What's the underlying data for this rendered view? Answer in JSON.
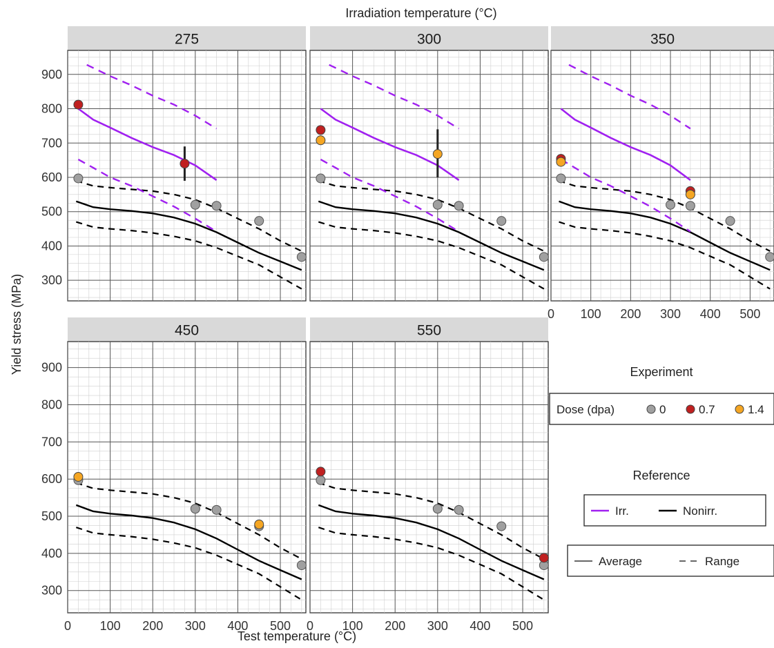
{
  "chart_data": {
    "type": "scatter",
    "top_title": "Irradiation temperature (°C)",
    "xlabel": "Test temperature (°C)",
    "ylabel": "Yield stress (MPa)",
    "xlim": [
      0,
      560
    ],
    "ylim": [
      240,
      970
    ],
    "x_ticks": [
      0,
      100,
      200,
      300,
      400,
      500
    ],
    "y_ticks": [
      300,
      400,
      500,
      600,
      700,
      800,
      900
    ],
    "grid": true,
    "reference": {
      "nonirr_average": [
        [
          20,
          530
        ],
        [
          60,
          513
        ],
        [
          100,
          507
        ],
        [
          150,
          502
        ],
        [
          200,
          495
        ],
        [
          250,
          483
        ],
        [
          300,
          465
        ],
        [
          350,
          440
        ],
        [
          400,
          410
        ],
        [
          450,
          380
        ],
        [
          500,
          355
        ],
        [
          550,
          330
        ]
      ],
      "nonirr_upper": [
        [
          20,
          590
        ],
        [
          60,
          575
        ],
        [
          100,
          570
        ],
        [
          150,
          565
        ],
        [
          200,
          560
        ],
        [
          250,
          550
        ],
        [
          300,
          535
        ],
        [
          350,
          510
        ],
        [
          400,
          480
        ],
        [
          450,
          450
        ],
        [
          500,
          415
        ],
        [
          550,
          385
        ]
      ],
      "nonirr_lower": [
        [
          20,
          470
        ],
        [
          60,
          455
        ],
        [
          100,
          450
        ],
        [
          150,
          445
        ],
        [
          200,
          438
        ],
        [
          250,
          428
        ],
        [
          300,
          415
        ],
        [
          350,
          395
        ],
        [
          400,
          370
        ],
        [
          450,
          345
        ],
        [
          500,
          310
        ],
        [
          550,
          275
        ]
      ],
      "irr_average": [
        [
          25,
          800
        ],
        [
          60,
          768
        ],
        [
          100,
          745
        ],
        [
          150,
          715
        ],
        [
          200,
          688
        ],
        [
          250,
          665
        ],
        [
          300,
          635
        ],
        [
          350,
          592
        ]
      ],
      "irr_upper": [
        [
          45,
          928
        ],
        [
          100,
          895
        ],
        [
          150,
          868
        ],
        [
          200,
          838
        ],
        [
          250,
          812
        ],
        [
          300,
          780
        ],
        [
          350,
          742
        ]
      ],
      "irr_lower": [
        [
          25,
          652
        ],
        [
          60,
          628
        ],
        [
          100,
          600
        ],
        [
          150,
          575
        ],
        [
          200,
          545
        ],
        [
          250,
          515
        ],
        [
          300,
          480
        ],
        [
          350,
          442
        ]
      ]
    },
    "nonirr_points": [
      [
        25,
        597
      ],
      [
        300,
        520
      ],
      [
        350,
        517
      ],
      [
        450,
        473
      ],
      [
        550,
        368
      ]
    ],
    "panels": [
      {
        "title": "275",
        "show_irr": true,
        "points": [
          {
            "x": 25,
            "y": 812,
            "dose": "0.7"
          },
          {
            "x": 275,
            "y": 640,
            "dose": "0.7",
            "err": [
              590,
              690
            ]
          }
        ]
      },
      {
        "title": "300",
        "show_irr": true,
        "points": [
          {
            "x": 25,
            "y": 738,
            "dose": "0.7"
          },
          {
            "x": 25,
            "y": 708,
            "dose": "1.4"
          },
          {
            "x": 300,
            "y": 668,
            "dose": "1.4",
            "err": [
              600,
              740
            ]
          }
        ]
      },
      {
        "title": "350",
        "show_irr": true,
        "points": [
          {
            "x": 25,
            "y": 654,
            "dose": "0.7"
          },
          {
            "x": 25,
            "y": 645,
            "dose": "1.4"
          },
          {
            "x": 350,
            "y": 560,
            "dose": "0.7"
          },
          {
            "x": 350,
            "y": 550,
            "dose": "1.4"
          }
        ]
      },
      {
        "title": "450",
        "show_irr": false,
        "points": [
          {
            "x": 25,
            "y": 606,
            "dose": "1.4"
          },
          {
            "x": 450,
            "y": 478,
            "dose": "1.4"
          }
        ]
      },
      {
        "title": "550",
        "show_irr": false,
        "points": [
          {
            "x": 25,
            "y": 620,
            "dose": "0.7"
          },
          {
            "x": 550,
            "y": 388,
            "dose": "0.7"
          }
        ]
      }
    ],
    "legend": {
      "experiment_title": "Experiment",
      "dose_label": "Dose (dpa)",
      "doses": [
        {
          "label": "0",
          "color": "#a0a0a0"
        },
        {
          "label": "0.7",
          "color": "#c02020"
        },
        {
          "label": "1.4",
          "color": "#f5a623"
        }
      ],
      "reference_title": "Reference",
      "irr_label": "Irr.",
      "nonirr_label": "Nonirr.",
      "average_label": "Average",
      "range_label": "Range"
    },
    "colors": {
      "irr": "#a020f0",
      "nonirr": "#000000",
      "dose_0": "#a0a0a0",
      "dose_07": "#c02020",
      "dose_14": "#f5a623",
      "strip": "#d9d9d9"
    }
  }
}
